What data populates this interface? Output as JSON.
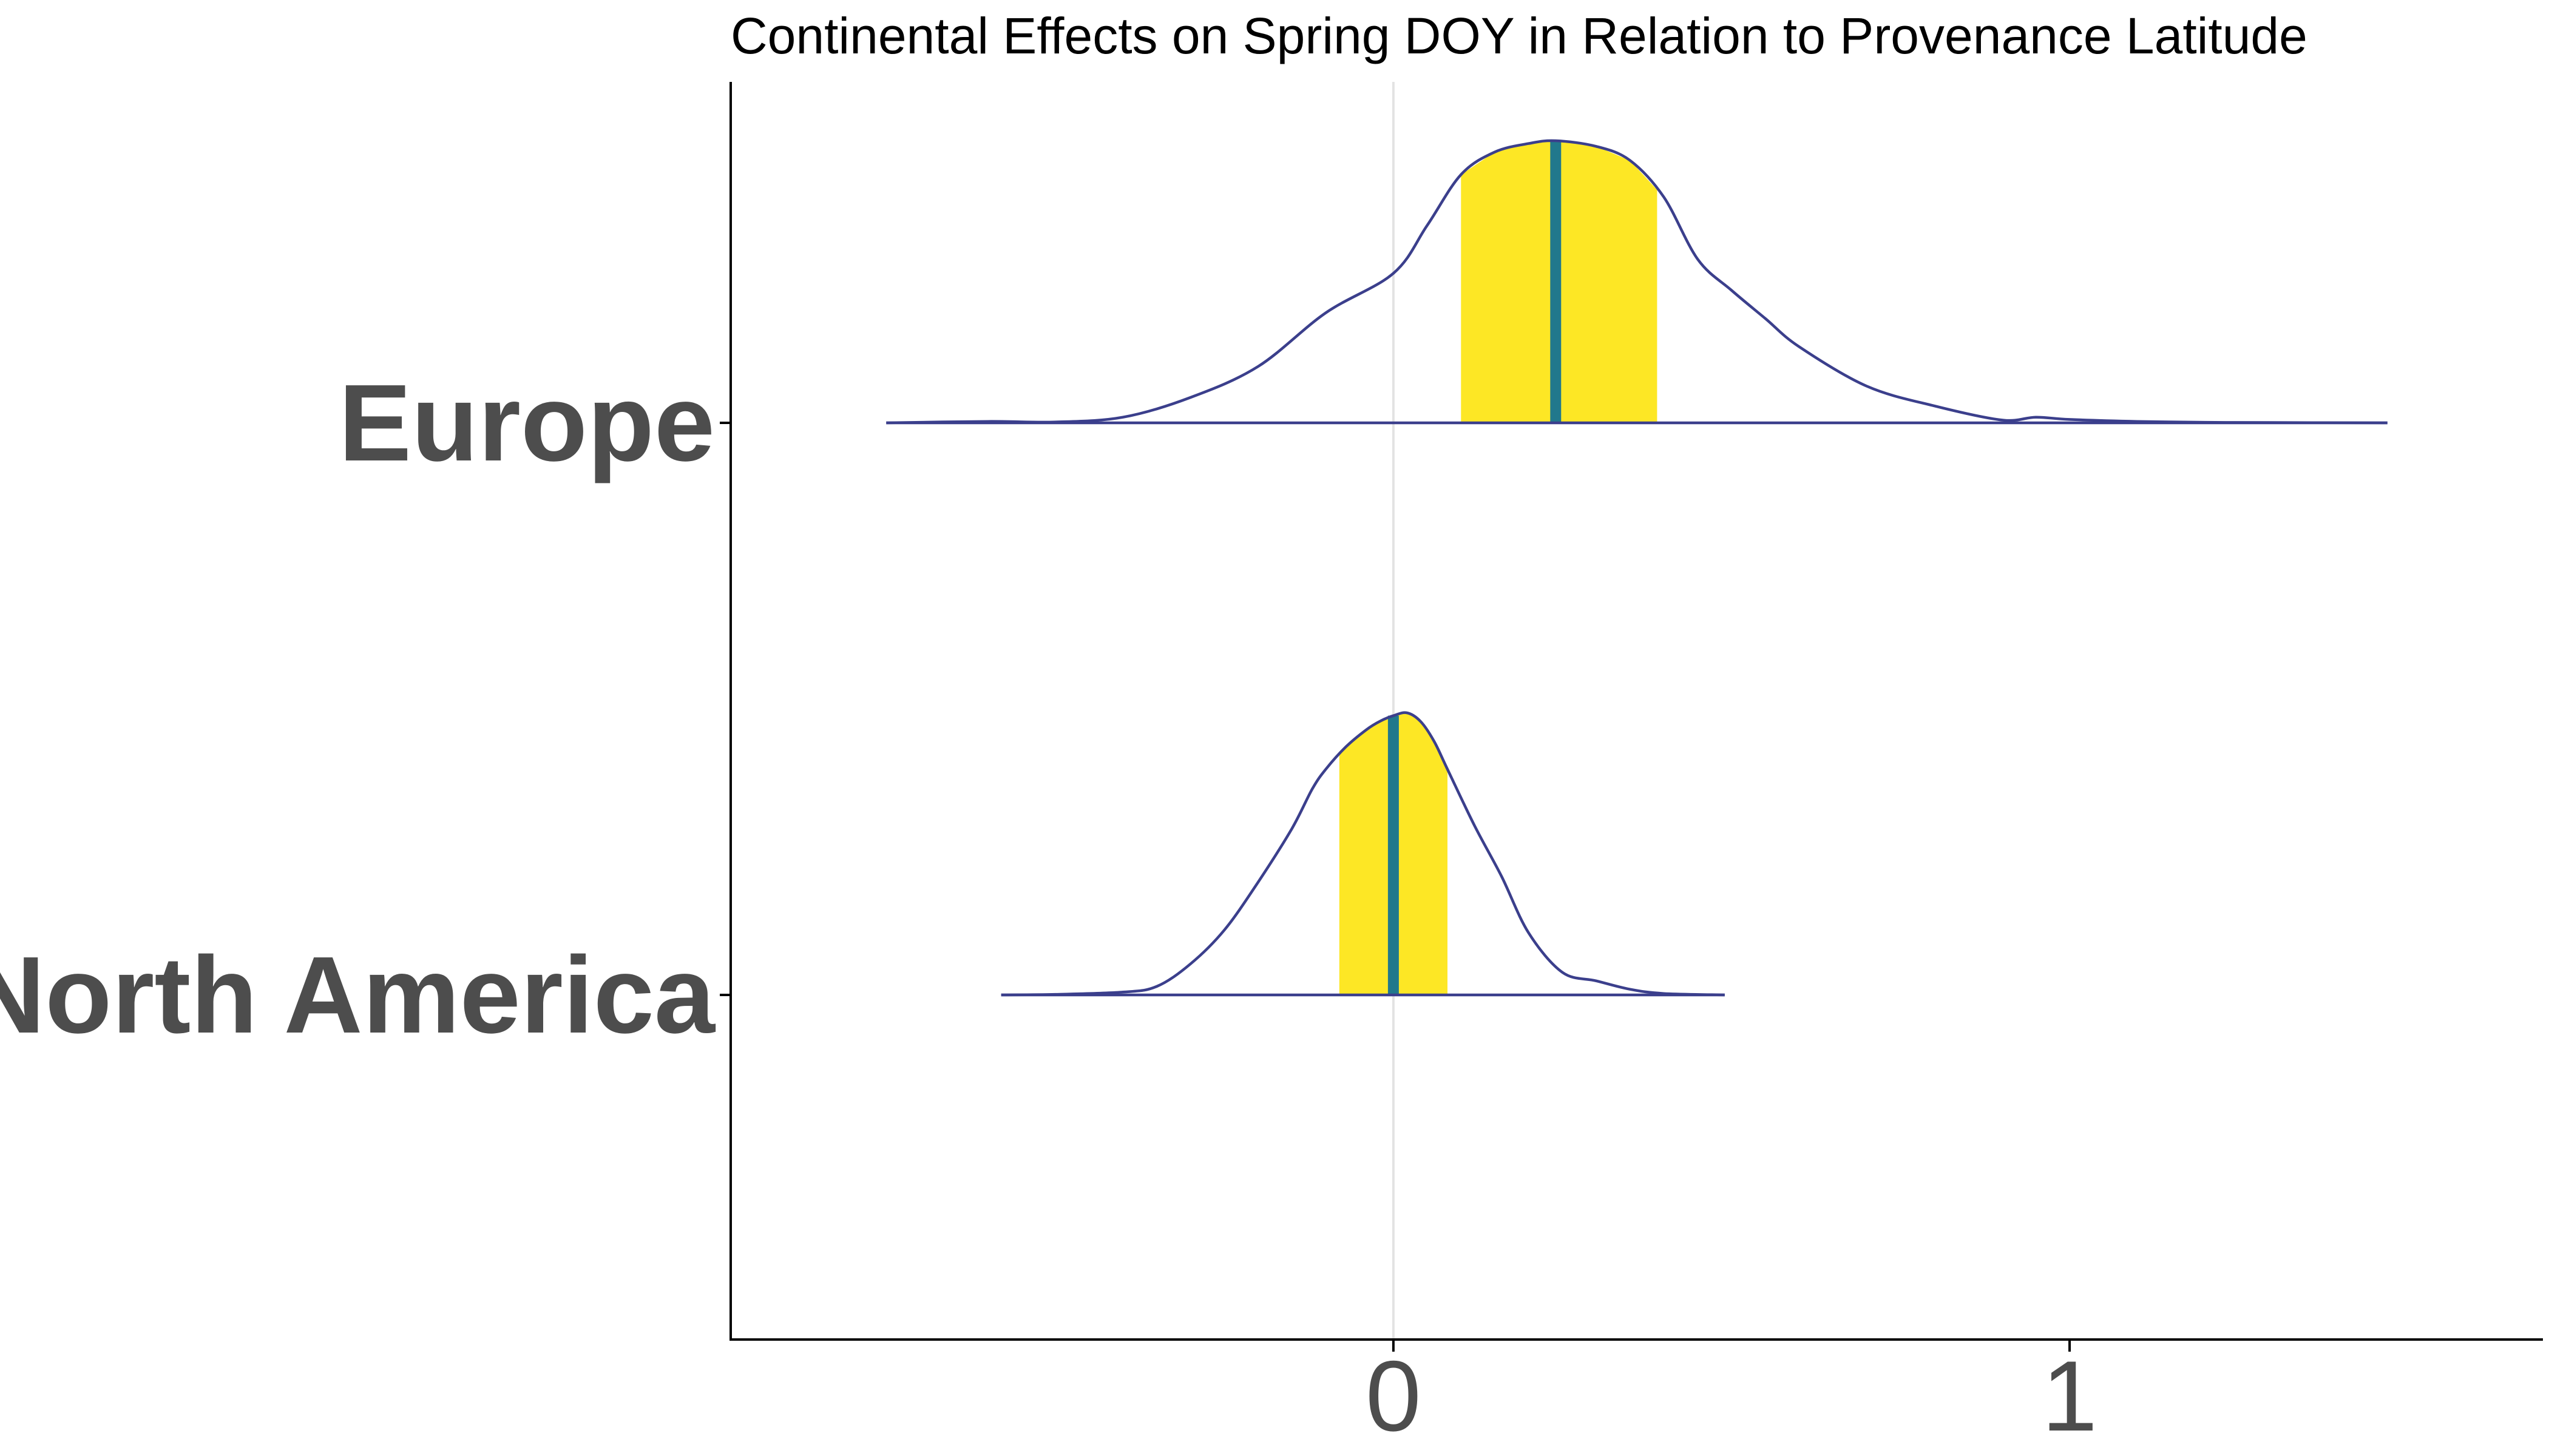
{
  "chart_data": {
    "type": "ridgeline",
    "title": "Continental Effects on Spring DOY in Relation to Provenance Latitude",
    "xlabel": "",
    "ylabel": "",
    "xlim": [
      -0.98,
      1.7
    ],
    "x_ticks": [
      {
        "value": 0,
        "label": "0"
      },
      {
        "value": 1,
        "label": "1"
      }
    ],
    "categories": [
      "Europe",
      "North America"
    ],
    "reference_line_x": 0,
    "grid": false,
    "colors": {
      "outline": "#3b3f8c",
      "interval_fill": "#fde725",
      "median_line": "#21788c",
      "reference_line": "#e3e3e3",
      "axis": "#000000",
      "label": "#4d4d4d"
    },
    "series": [
      {
        "name": "Europe",
        "median": 0.24,
        "interval": [
          0.1,
          0.39
        ],
        "density": {
          "x": [
            -0.75,
            -0.6,
            -0.5,
            -0.4,
            -0.3,
            -0.2,
            -0.1,
            0.0,
            0.05,
            0.1,
            0.15,
            0.2,
            0.24,
            0.3,
            0.35,
            0.4,
            0.45,
            0.5,
            0.55,
            0.6,
            0.7,
            0.8,
            0.9,
            0.95,
            1.0,
            1.1,
            1.2,
            1.3,
            1.47
          ],
          "y": [
            0.0,
            0.005,
            0.003,
            0.02,
            0.09,
            0.2,
            0.39,
            0.53,
            0.7,
            0.88,
            0.96,
            0.99,
            1.0,
            0.98,
            0.93,
            0.8,
            0.58,
            0.47,
            0.37,
            0.27,
            0.13,
            0.06,
            0.01,
            0.02,
            0.012,
            0.005,
            0.002,
            0.001,
            0.0
          ]
        }
      },
      {
        "name": "North America",
        "median": 0.0,
        "interval": [
          -0.08,
          0.08
        ],
        "density": {
          "x": [
            -0.58,
            -0.5,
            -0.4,
            -0.35,
            -0.3,
            -0.25,
            -0.2,
            -0.15,
            -0.12,
            -0.1,
            -0.07,
            -0.04,
            -0.02,
            0.0,
            0.02,
            0.04,
            0.06,
            0.08,
            0.12,
            0.16,
            0.2,
            0.25,
            0.3,
            0.35,
            0.4,
            0.49
          ],
          "y": [
            0.0,
            0.002,
            0.01,
            0.03,
            0.11,
            0.23,
            0.4,
            0.59,
            0.73,
            0.8,
            0.88,
            0.94,
            0.97,
            0.99,
            1.0,
            0.97,
            0.9,
            0.8,
            0.6,
            0.42,
            0.22,
            0.08,
            0.05,
            0.02,
            0.005,
            0.0
          ]
        }
      }
    ]
  }
}
